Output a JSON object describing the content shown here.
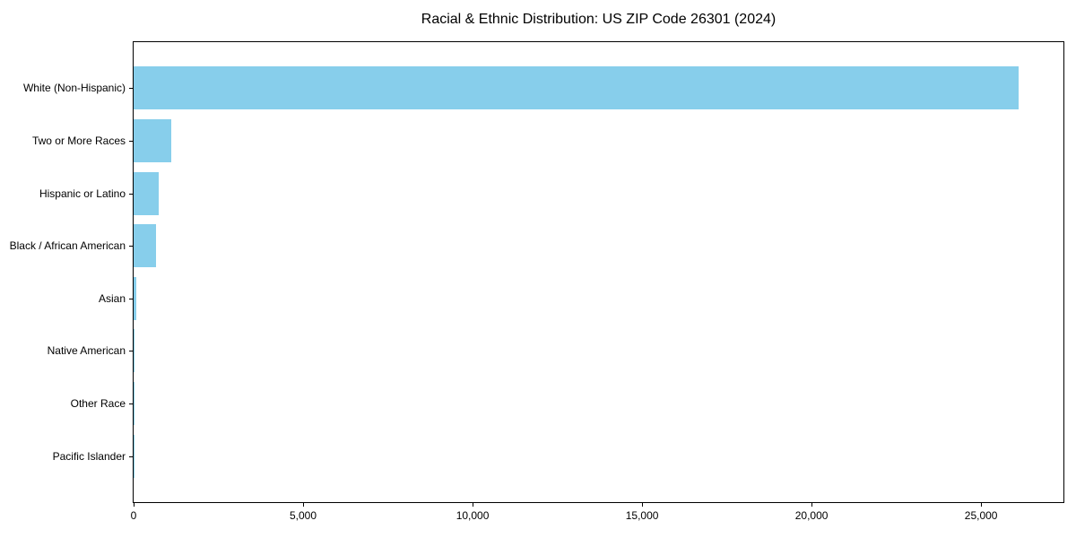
{
  "chart_data": {
    "type": "bar",
    "orientation": "horizontal",
    "title": "Racial & Ethnic Distribution: US ZIP Code 26301 (2024)",
    "categories": [
      "White (Non-Hispanic)",
      "Two or More Races",
      "Hispanic or Latino",
      "Black / African American",
      "Asian",
      "Native American",
      "Other Race",
      "Pacific Islander"
    ],
    "values": [
      26100,
      1120,
      750,
      660,
      90,
      25,
      15,
      5
    ],
    "xlabel": "",
    "ylabel": "",
    "xlim": [
      0,
      27430
    ],
    "xticks": {
      "values": [
        0,
        5000,
        10000,
        15000,
        20000,
        25000
      ],
      "labels": [
        "0",
        "5,000",
        "10,000",
        "15,000",
        "20,000",
        "25,000"
      ]
    },
    "grid": false,
    "legend": null,
    "bar_color": "#87CEEB",
    "axis_color": "#000000",
    "text_color": "#000000",
    "background_color": "#FFFFFF"
  }
}
